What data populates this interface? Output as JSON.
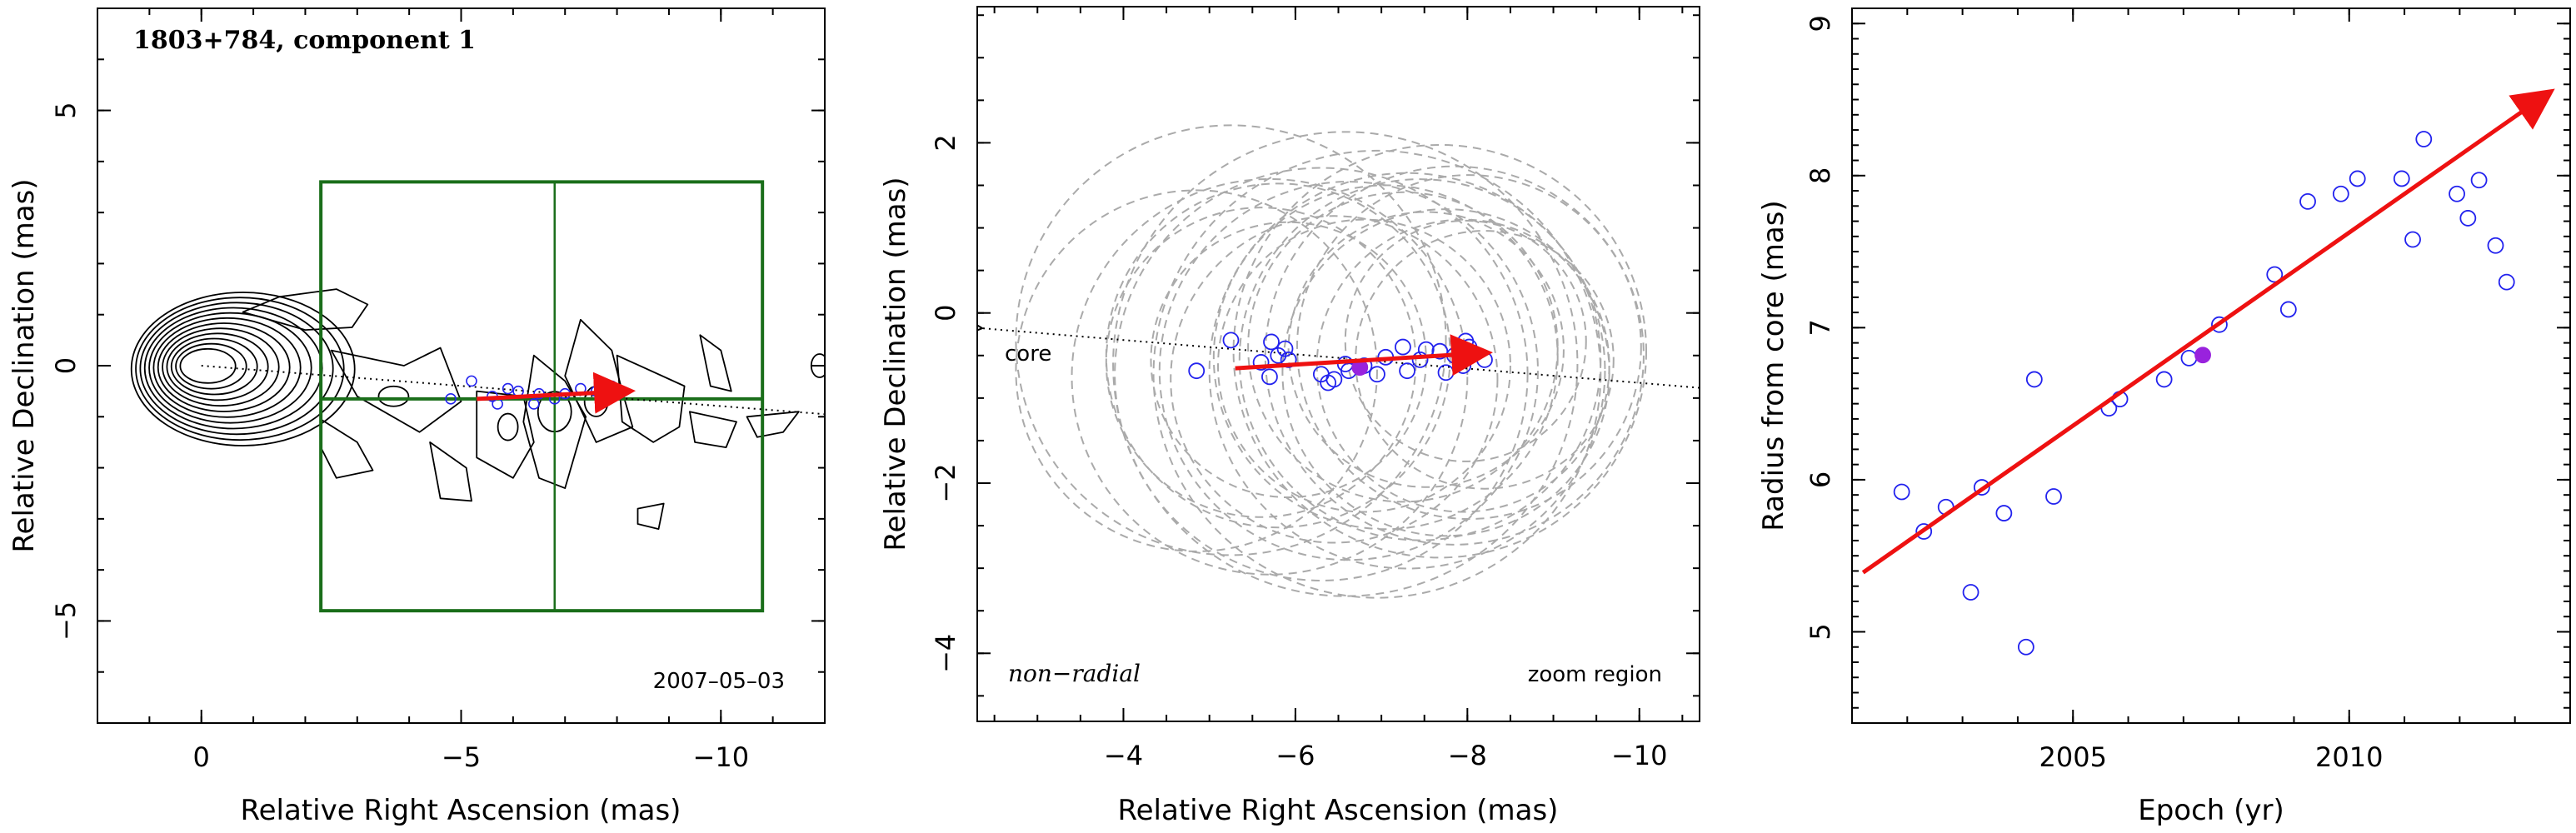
{
  "chart_data": [
    {
      "type": "scatter",
      "title": "1803+784, component 1",
      "xlabel": "Relative Right Ascension (mas)",
      "ylabel": "Relative Declination (mas)",
      "xlim": [
        2,
        -12
      ],
      "ylim": [
        -7,
        7
      ],
      "x_ticks": [
        0,
        -5,
        -10
      ],
      "y_ticks": [
        5,
        0,
        -5
      ],
      "tick_labels_x": [
        "0",
        "−5",
        "−10"
      ],
      "tick_labels_y": [
        "5",
        "0",
        "−5"
      ],
      "epoch_label": "2007–05–03",
      "zoom_box": {
        "x_range": [
          -2.3,
          -10.8
        ],
        "y_range": [
          -4.8,
          3.6
        ],
        "cross_x": -6.8,
        "cross_y": -0.65
      },
      "core_direction_line": {
        "from": [
          0,
          0
        ],
        "to": [
          -12,
          -0.95
        ]
      },
      "velocity_vector": {
        "from": [
          -5.3,
          -0.65
        ],
        "to": [
          -8.2,
          -0.5
        ],
        "color": "#ee1111"
      },
      "component_positions": [
        {
          "x": -4.8,
          "y": -0.65
        },
        {
          "x": -5.2,
          "y": -0.3
        },
        {
          "x": -5.6,
          "y": -0.6
        },
        {
          "x": -5.7,
          "y": -0.75
        },
        {
          "x": -5.9,
          "y": -0.45
        },
        {
          "x": -6.1,
          "y": -0.5
        },
        {
          "x": -6.4,
          "y": -0.75
        },
        {
          "x": -6.5,
          "y": -0.55
        },
        {
          "x": -6.8,
          "y": -0.65
        },
        {
          "x": -7.0,
          "y": -0.55
        },
        {
          "x": -7.3,
          "y": -0.45
        },
        {
          "x": -7.6,
          "y": -0.5
        },
        {
          "x": -7.9,
          "y": -0.4
        },
        {
          "x": -8.1,
          "y": -0.5
        }
      ],
      "contour_levels": 12,
      "colors": {
        "contour": "#000000",
        "box": "#1a6e1a",
        "points": "#2222ee",
        "vector": "#ee1111"
      }
    },
    {
      "type": "scatter",
      "xlabel": "Relative Right Ascension (mas)",
      "ylabel": "Relative Declination (mas)",
      "xlim": [
        -2.3,
        -10.7
      ],
      "ylim": [
        -4.8,
        3.6
      ],
      "x_ticks": [
        -4,
        -6,
        -8,
        -10
      ],
      "y_ticks": [
        2,
        0,
        -2,
        -4
      ],
      "tick_labels_x": [
        "−4",
        "−6",
        "−8",
        "−10"
      ],
      "tick_labels_y": [
        "2",
        "0",
        "−2",
        "−4"
      ],
      "annotations": {
        "core": "core",
        "motion_type": "non−radial",
        "region": "zoom region"
      },
      "core_direction_line": {
        "from": [
          -2.3,
          -0.18
        ],
        "to": [
          -10.7,
          -0.88
        ]
      },
      "velocity_vector": {
        "from": [
          -5.3,
          -0.65
        ],
        "to": [
          -8.2,
          -0.47
        ],
        "color": "#ee1111"
      },
      "points": [
        {
          "x": -4.85,
          "y": -0.68
        },
        {
          "x": -5.25,
          "y": -0.32
        },
        {
          "x": -5.6,
          "y": -0.58
        },
        {
          "x": -5.7,
          "y": -0.75
        },
        {
          "x": -5.72,
          "y": -0.34
        },
        {
          "x": -5.8,
          "y": -0.5
        },
        {
          "x": -5.88,
          "y": -0.42
        },
        {
          "x": -5.92,
          "y": -0.55
        },
        {
          "x": -6.3,
          "y": -0.72
        },
        {
          "x": -6.38,
          "y": -0.82
        },
        {
          "x": -6.45,
          "y": -0.78
        },
        {
          "x": -6.58,
          "y": -0.6
        },
        {
          "x": -6.62,
          "y": -0.68
        },
        {
          "x": -6.8,
          "y": -0.62
        },
        {
          "x": -6.95,
          "y": -0.72
        },
        {
          "x": -7.05,
          "y": -0.52
        },
        {
          "x": -7.25,
          "y": -0.4
        },
        {
          "x": -7.3,
          "y": -0.68
        },
        {
          "x": -7.45,
          "y": -0.55
        },
        {
          "x": -7.52,
          "y": -0.43
        },
        {
          "x": -7.68,
          "y": -0.45
        },
        {
          "x": -7.75,
          "y": -0.7
        },
        {
          "x": -7.85,
          "y": -0.5
        },
        {
          "x": -7.95,
          "y": -0.62
        },
        {
          "x": -7.98,
          "y": -0.33
        },
        {
          "x": -8.02,
          "y": -0.4
        },
        {
          "x": -8.2,
          "y": -0.55
        }
      ],
      "highlight_point": {
        "x": -6.75,
        "y": -0.64
      },
      "beam_circles": [
        {
          "x": -4.85,
          "y": -0.68,
          "r": 2.1
        },
        {
          "x": -5.25,
          "y": -0.32,
          "r": 2.5
        },
        {
          "x": -5.6,
          "y": -0.58,
          "r": 1.8
        },
        {
          "x": -5.7,
          "y": -0.75,
          "r": 2.3
        },
        {
          "x": -5.8,
          "y": -0.5,
          "r": 2.0
        },
        {
          "x": -5.92,
          "y": -0.55,
          "r": 1.6
        },
        {
          "x": -6.3,
          "y": -0.72,
          "r": 2.4
        },
        {
          "x": -6.45,
          "y": -0.78,
          "r": 1.9
        },
        {
          "x": -6.62,
          "y": -0.68,
          "r": 2.2
        },
        {
          "x": -6.8,
          "y": -0.62,
          "r": 1.7
        },
        {
          "x": -6.95,
          "y": -0.72,
          "r": 2.6
        },
        {
          "x": -7.05,
          "y": -0.52,
          "r": 2.0
        },
        {
          "x": -7.25,
          "y": -0.4,
          "r": 1.8
        },
        {
          "x": -7.3,
          "y": -0.68,
          "r": 2.3
        },
        {
          "x": -7.45,
          "y": -0.55,
          "r": 2.1
        },
        {
          "x": -7.52,
          "y": -0.43,
          "r": 1.6
        },
        {
          "x": -7.68,
          "y": -0.45,
          "r": 2.4
        },
        {
          "x": -7.75,
          "y": -0.7,
          "r": 1.9
        },
        {
          "x": -7.85,
          "y": -0.5,
          "r": 2.2
        },
        {
          "x": -7.95,
          "y": -0.62,
          "r": 1.7
        },
        {
          "x": -8.02,
          "y": -0.4,
          "r": 2.0
        },
        {
          "x": -8.2,
          "y": -0.55,
          "r": 1.5
        },
        {
          "x": -6.58,
          "y": -0.6,
          "r": 2.7
        },
        {
          "x": -7.98,
          "y": -0.33,
          "r": 1.4
        }
      ],
      "colors": {
        "points": "#2222ee",
        "highlight": "#9922dd",
        "circles": "#aaaaaa",
        "vector": "#ee1111"
      }
    },
    {
      "type": "scatter",
      "xlabel": "Epoch (yr)",
      "ylabel": "Radius from core (mas)",
      "xlim": [
        2001,
        2014
      ],
      "ylim": [
        4.4,
        9.1
      ],
      "x_ticks": [
        2005,
        2010
      ],
      "y_ticks": [
        5,
        6,
        7,
        8,
        9
      ],
      "tick_labels_x": [
        "2005",
        "2010"
      ],
      "tick_labels_y": [
        "5",
        "6",
        "7",
        "8",
        "9"
      ],
      "points": [
        {
          "x": 2001.9,
          "y": 5.92
        },
        {
          "x": 2002.3,
          "y": 5.66
        },
        {
          "x": 2002.7,
          "y": 5.82
        },
        {
          "x": 2003.15,
          "y": 5.26
        },
        {
          "x": 2003.35,
          "y": 5.95
        },
        {
          "x": 2003.75,
          "y": 5.78
        },
        {
          "x": 2004.15,
          "y": 4.9
        },
        {
          "x": 2004.3,
          "y": 6.66
        },
        {
          "x": 2004.65,
          "y": 5.89
        },
        {
          "x": 2005.65,
          "y": 6.47
        },
        {
          "x": 2005.85,
          "y": 6.53
        },
        {
          "x": 2006.65,
          "y": 6.66
        },
        {
          "x": 2007.1,
          "y": 6.8
        },
        {
          "x": 2007.65,
          "y": 7.02
        },
        {
          "x": 2008.65,
          "y": 7.35
        },
        {
          "x": 2008.9,
          "y": 7.12
        },
        {
          "x": 2009.25,
          "y": 7.83
        },
        {
          "x": 2009.85,
          "y": 7.88
        },
        {
          "x": 2010.15,
          "y": 7.98
        },
        {
          "x": 2010.95,
          "y": 7.98
        },
        {
          "x": 2011.15,
          "y": 7.58
        },
        {
          "x": 2011.35,
          "y": 8.24
        },
        {
          "x": 2011.95,
          "y": 7.88
        },
        {
          "x": 2012.15,
          "y": 7.72
        },
        {
          "x": 2012.35,
          "y": 7.97
        },
        {
          "x": 2012.65,
          "y": 7.54
        },
        {
          "x": 2012.85,
          "y": 7.3
        }
      ],
      "highlight_point": {
        "x": 2007.35,
        "y": 6.82
      },
      "fit_vector": {
        "from": [
          2001.2,
          5.39
        ],
        "to": [
          2013.6,
          8.54
        ]
      },
      "colors": {
        "points": "#2222ee",
        "highlight": "#9922dd",
        "vector": "#ee1111"
      }
    }
  ]
}
